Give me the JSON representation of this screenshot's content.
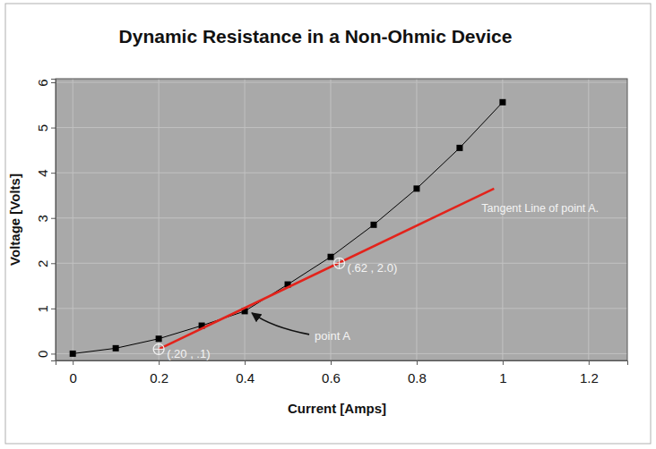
{
  "chart_data": {
    "type": "line",
    "title": "Dynamic Resistance in a Non-Ohmic Device",
    "x_label": "Current [Amps]",
    "y_label": "Voltage [Volts]",
    "x": [
      0,
      0.1,
      0.2,
      0.3,
      0.4,
      0.5,
      0.6,
      0.7,
      0.8,
      0.9,
      1.0
    ],
    "series": [
      {
        "color": "#000000",
        "marker": "square",
        "line_style": "solid",
        "values": [
          0,
          0.12,
          0.33,
          0.62,
          0.94,
          1.53,
          2.14,
          2.85,
          3.65,
          4.55,
          5.56
        ]
      },
      {
        "color": "#e3231b",
        "marker": "none",
        "line_style": "solid",
        "x": [
          0.2,
          0.98
        ],
        "values": [
          0.1,
          3.65
        ]
      }
    ],
    "annotations": [
      {
        "text": "(.20 , .1)",
        "x": 0.2,
        "y": 0.1,
        "marker": "circle"
      },
      {
        "text": "(.62 , 2.0)",
        "x": 0.62,
        "y": 2.0,
        "marker": "circle"
      },
      {
        "text": "point A",
        "x": 0.4,
        "y": 0.94,
        "marker": "arrow"
      },
      {
        "text": "Tangent Line of point A.",
        "x": 0.98,
        "y": 3.65,
        "marker": "none"
      }
    ],
    "xlim": [
      -0.04,
      1.29
    ],
    "ylim": [
      -0.15,
      6.08
    ],
    "xticks": [
      0,
      0.2,
      0.4,
      0.6,
      0.8,
      1,
      1.2
    ],
    "yticks": [
      0,
      1,
      2,
      3,
      4,
      5,
      6
    ],
    "grid": true
  }
}
